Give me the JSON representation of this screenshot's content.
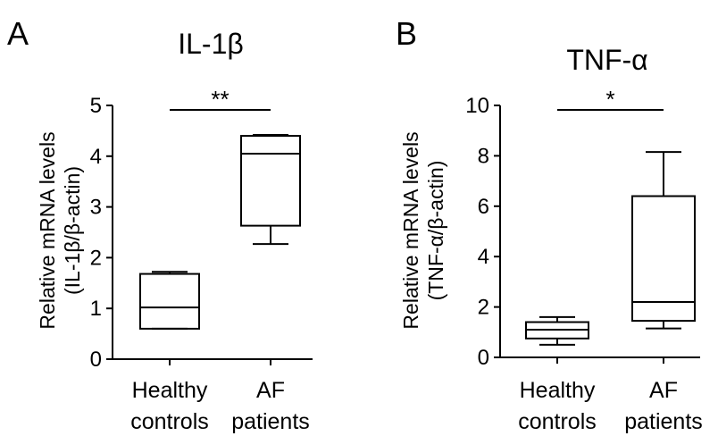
{
  "chart_data": [
    {
      "type": "box",
      "panel_label": "A",
      "title": "IL-1β",
      "ylabel_line1": "Relative mRNA levels",
      "ylabel_line2": "(IL-1β/β-actin)",
      "ylim": [
        0,
        5
      ],
      "yticks": [
        "0",
        "1",
        "2",
        "3",
        "4",
        "5"
      ],
      "categories": [
        {
          "line1": "Healthy",
          "line2": "controls"
        },
        {
          "line1": "AF",
          "line2": "patients"
        }
      ],
      "boxes": [
        {
          "min": 0.6,
          "q1": 0.6,
          "median": 1.02,
          "q3": 1.68,
          "max": 1.72
        },
        {
          "min": 2.27,
          "q1": 2.63,
          "median": 4.05,
          "q3": 4.4,
          "max": 4.42
        }
      ],
      "significance": "**"
    },
    {
      "type": "box",
      "panel_label": "B",
      "title": "TNF-α",
      "ylabel_line1": "Relative mRNA levels",
      "ylabel_line2": "(TNF-α/β-actin)",
      "ylim": [
        0,
        10
      ],
      "yticks": [
        "0",
        "2",
        "4",
        "6",
        "8",
        "10"
      ],
      "categories": [
        {
          "line1": "Healthy",
          "line2": "controls"
        },
        {
          "line1": "AF",
          "line2": "patients"
        }
      ],
      "boxes": [
        {
          "min": 0.5,
          "q1": 0.75,
          "median": 1.1,
          "q3": 1.4,
          "max": 1.6
        },
        {
          "min": 1.15,
          "q1": 1.45,
          "median": 2.2,
          "q3": 6.4,
          "max": 8.15
        }
      ],
      "significance": "*"
    }
  ]
}
